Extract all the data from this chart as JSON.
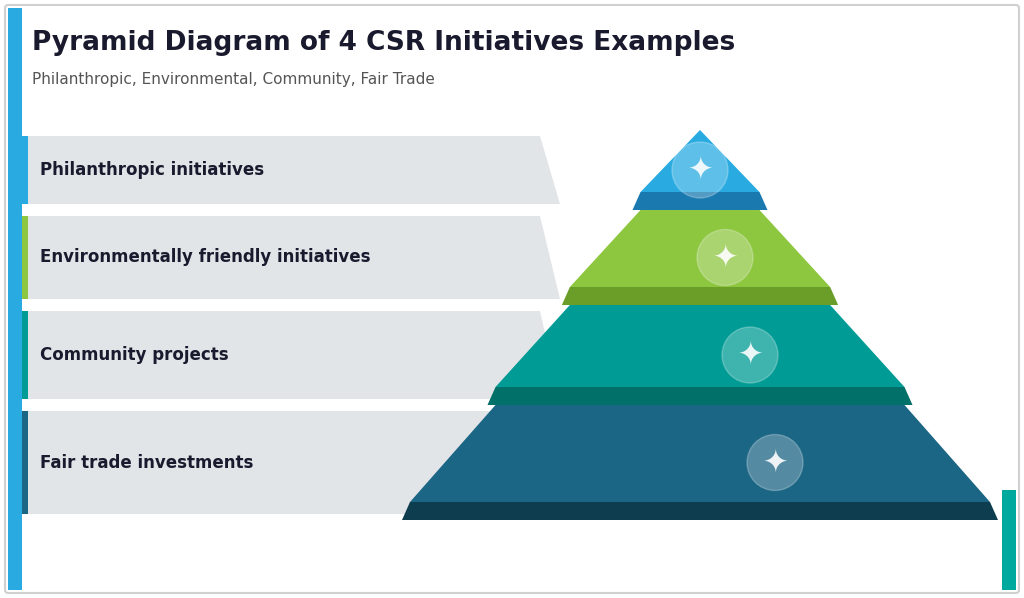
{
  "title": "Pyramid Diagram of 4 CSR Initiatives Examples",
  "subtitle": "Philanthropic, Environmental, Community, Fair Trade",
  "background_color": "#ffffff",
  "border_color": "#d0d0d0",
  "layers": [
    {
      "label": "Philanthropic initiatives",
      "color_main": "#29abe2",
      "color_dark": "#1a7ab0",
      "accent_color": "#29abe2"
    },
    {
      "label": "Environmentally friendly initiatives",
      "color_main": "#8dc63f",
      "color_dark": "#6a9e28",
      "accent_color": "#8dc63f"
    },
    {
      "label": "Community projects",
      "color_main": "#009b94",
      "color_dark": "#007068",
      "accent_color": "#009b94"
    },
    {
      "label": "Fair trade investments",
      "color_main": "#1b6585",
      "color_dark": "#0e3d50",
      "accent_color": "#1b6585"
    }
  ],
  "label_bg_color": "#e2e5e8",
  "title_color": "#1a1a2e",
  "subtitle_color": "#555555",
  "text_color": "#1a1a2e",
  "left_bar_color": "#29abe2",
  "right_bar_color": "#00a99d"
}
